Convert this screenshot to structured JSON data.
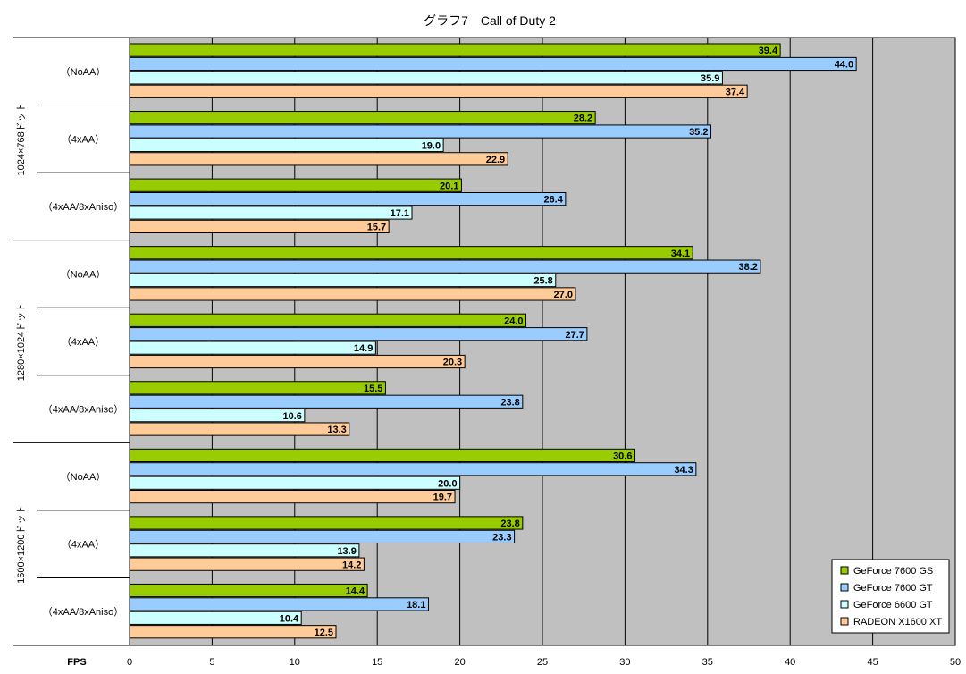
{
  "chart_data": {
    "type": "bar",
    "orientation": "horizontal",
    "title": "グラフ7　Call of Duty 2",
    "xlabel": "FPS",
    "xlim": [
      0,
      50
    ],
    "xticks": [
      "0",
      "5",
      "10",
      "15",
      "20",
      "25",
      "30",
      "35",
      "40",
      "45",
      "50"
    ],
    "grid": "vertical",
    "legend_position": "bottom-right",
    "series": [
      {
        "name": "GeForce 7600 GS",
        "color": "#99cc00",
        "values": [
          39.4,
          28.2,
          20.1,
          34.1,
          24.0,
          15.5,
          30.6,
          23.8,
          14.4
        ]
      },
      {
        "name": "GeForce 7600 GT",
        "color": "#99ccff",
        "values": [
          44.0,
          35.2,
          26.4,
          38.2,
          27.7,
          23.8,
          34.3,
          23.3,
          18.1
        ]
      },
      {
        "name": "GeForce 6600 GT",
        "color": "#ccffff",
        "values": [
          35.9,
          19.0,
          17.1,
          25.8,
          14.9,
          10.6,
          20.0,
          13.9,
          10.4
        ]
      },
      {
        "name": "RADEON X1600 XT",
        "color": "#ffcc99",
        "values": [
          37.4,
          22.9,
          15.7,
          27.0,
          20.3,
          13.3,
          19.7,
          14.2,
          12.5
        ]
      }
    ],
    "value_labels": [
      [
        "39.4",
        "28.2",
        "20.1",
        "34.1",
        "24.0",
        "15.5",
        "30.6",
        "23.8",
        "14.4"
      ],
      [
        "44.0",
        "35.2",
        "26.4",
        "38.2",
        "27.7",
        "23.8",
        "34.3",
        "23.3",
        "18.1"
      ],
      [
        "35.9",
        "19.0",
        "17.1",
        "25.8",
        "14.9",
        "10.6",
        "20.0",
        "13.9",
        "10.4"
      ],
      [
        "37.4",
        "22.9",
        "15.7",
        "27.0",
        "20.3",
        "13.3",
        "19.7",
        "14.2",
        "12.5"
      ]
    ],
    "groups": [
      {
        "label": "1024×768ドット",
        "categories": [
          "（NoAA）",
          "（4xAA）",
          "（4xAA/8xAniso）"
        ]
      },
      {
        "label": "1280×1024ドット",
        "categories": [
          "（NoAA）",
          "（4xAA）",
          "（4xAA/8xAniso）"
        ]
      },
      {
        "label": "1600×1200ドット",
        "categories": [
          "（NoAA）",
          "（4xAA）",
          "（4xAA/8xAniso）"
        ]
      }
    ],
    "plot_background": "#c0c0c0"
  }
}
